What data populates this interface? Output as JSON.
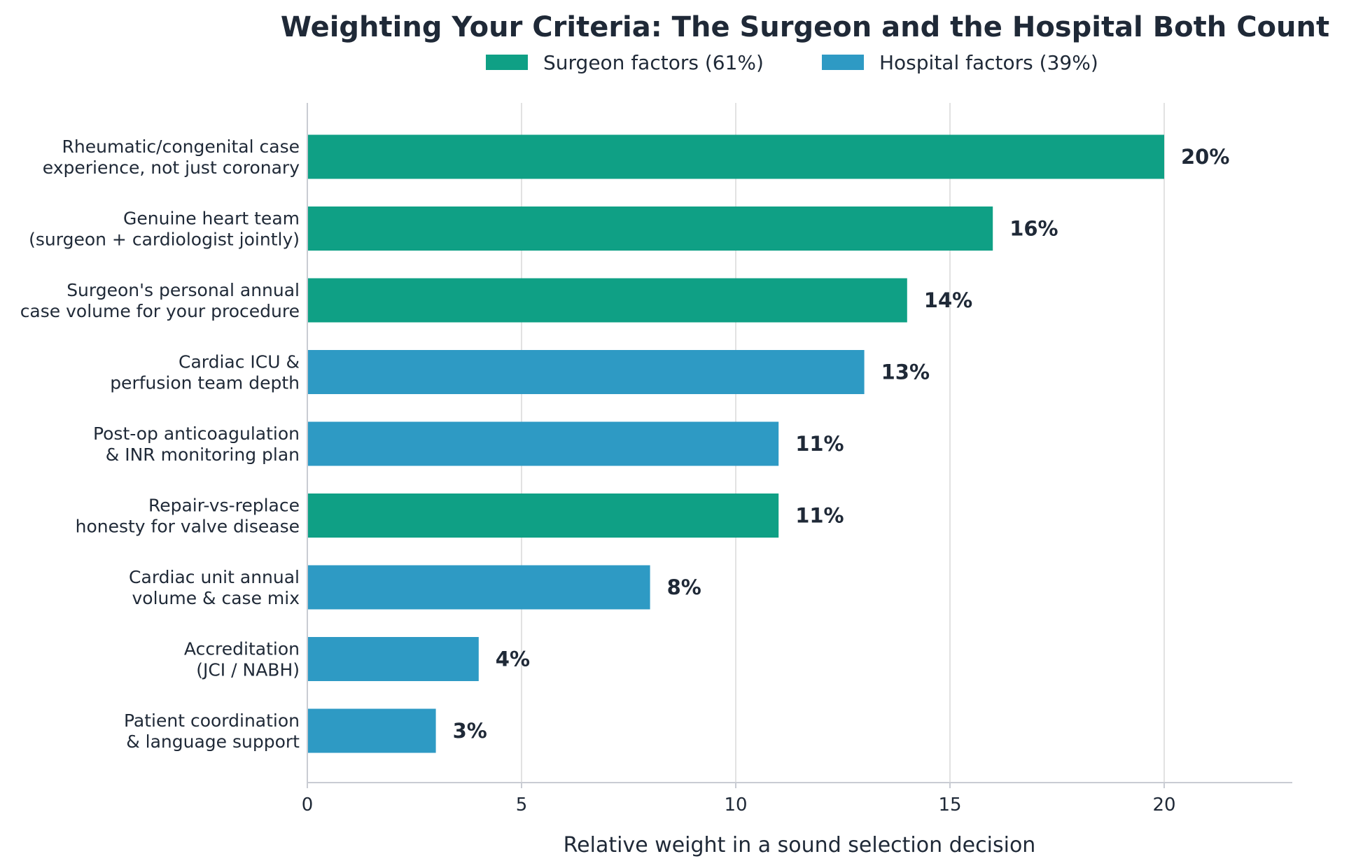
{
  "chart_data": {
    "type": "bar",
    "orientation": "horizontal",
    "title": "Weighting Your Criteria: The Surgeon and the Hospital Both Count",
    "xlabel": "Relative weight in a sound selection decision",
    "ylabel": "",
    "xlim": [
      0,
      23
    ],
    "xticks": [
      0,
      5,
      10,
      15,
      20
    ],
    "grid": "vertical",
    "legend_position": "top-center",
    "legend": [
      {
        "label": "Surgeon factors  (61%)",
        "color": "#0fa085"
      },
      {
        "label": "Hospital factors  (39%)",
        "color": "#2e9ac4"
      }
    ],
    "categories": [
      [
        "Rheumatic/congenital case",
        "experience, not just coronary"
      ],
      [
        "Genuine heart team",
        "(surgeon + cardiologist jointly)"
      ],
      [
        "Surgeon's personal annual",
        "case volume for your procedure"
      ],
      [
        "Cardiac ICU &",
        "perfusion team depth"
      ],
      [
        "Post-op anticoagulation",
        "& INR monitoring plan"
      ],
      [
        "Repair-vs-replace",
        "honesty for valve disease"
      ],
      [
        "Cardiac unit annual",
        "volume & case mix"
      ],
      [
        "Accreditation",
        "(JCI / NABH)"
      ],
      [
        "Patient coordination",
        "& language support"
      ]
    ],
    "values": [
      20,
      16,
      14,
      13,
      11,
      11,
      8,
      4,
      3
    ],
    "value_labels": [
      "20%",
      "16%",
      "14%",
      "13%",
      "11%",
      "11%",
      "8%",
      "4%",
      "3%"
    ],
    "groups": [
      0,
      0,
      0,
      1,
      1,
      0,
      1,
      1,
      1
    ]
  }
}
